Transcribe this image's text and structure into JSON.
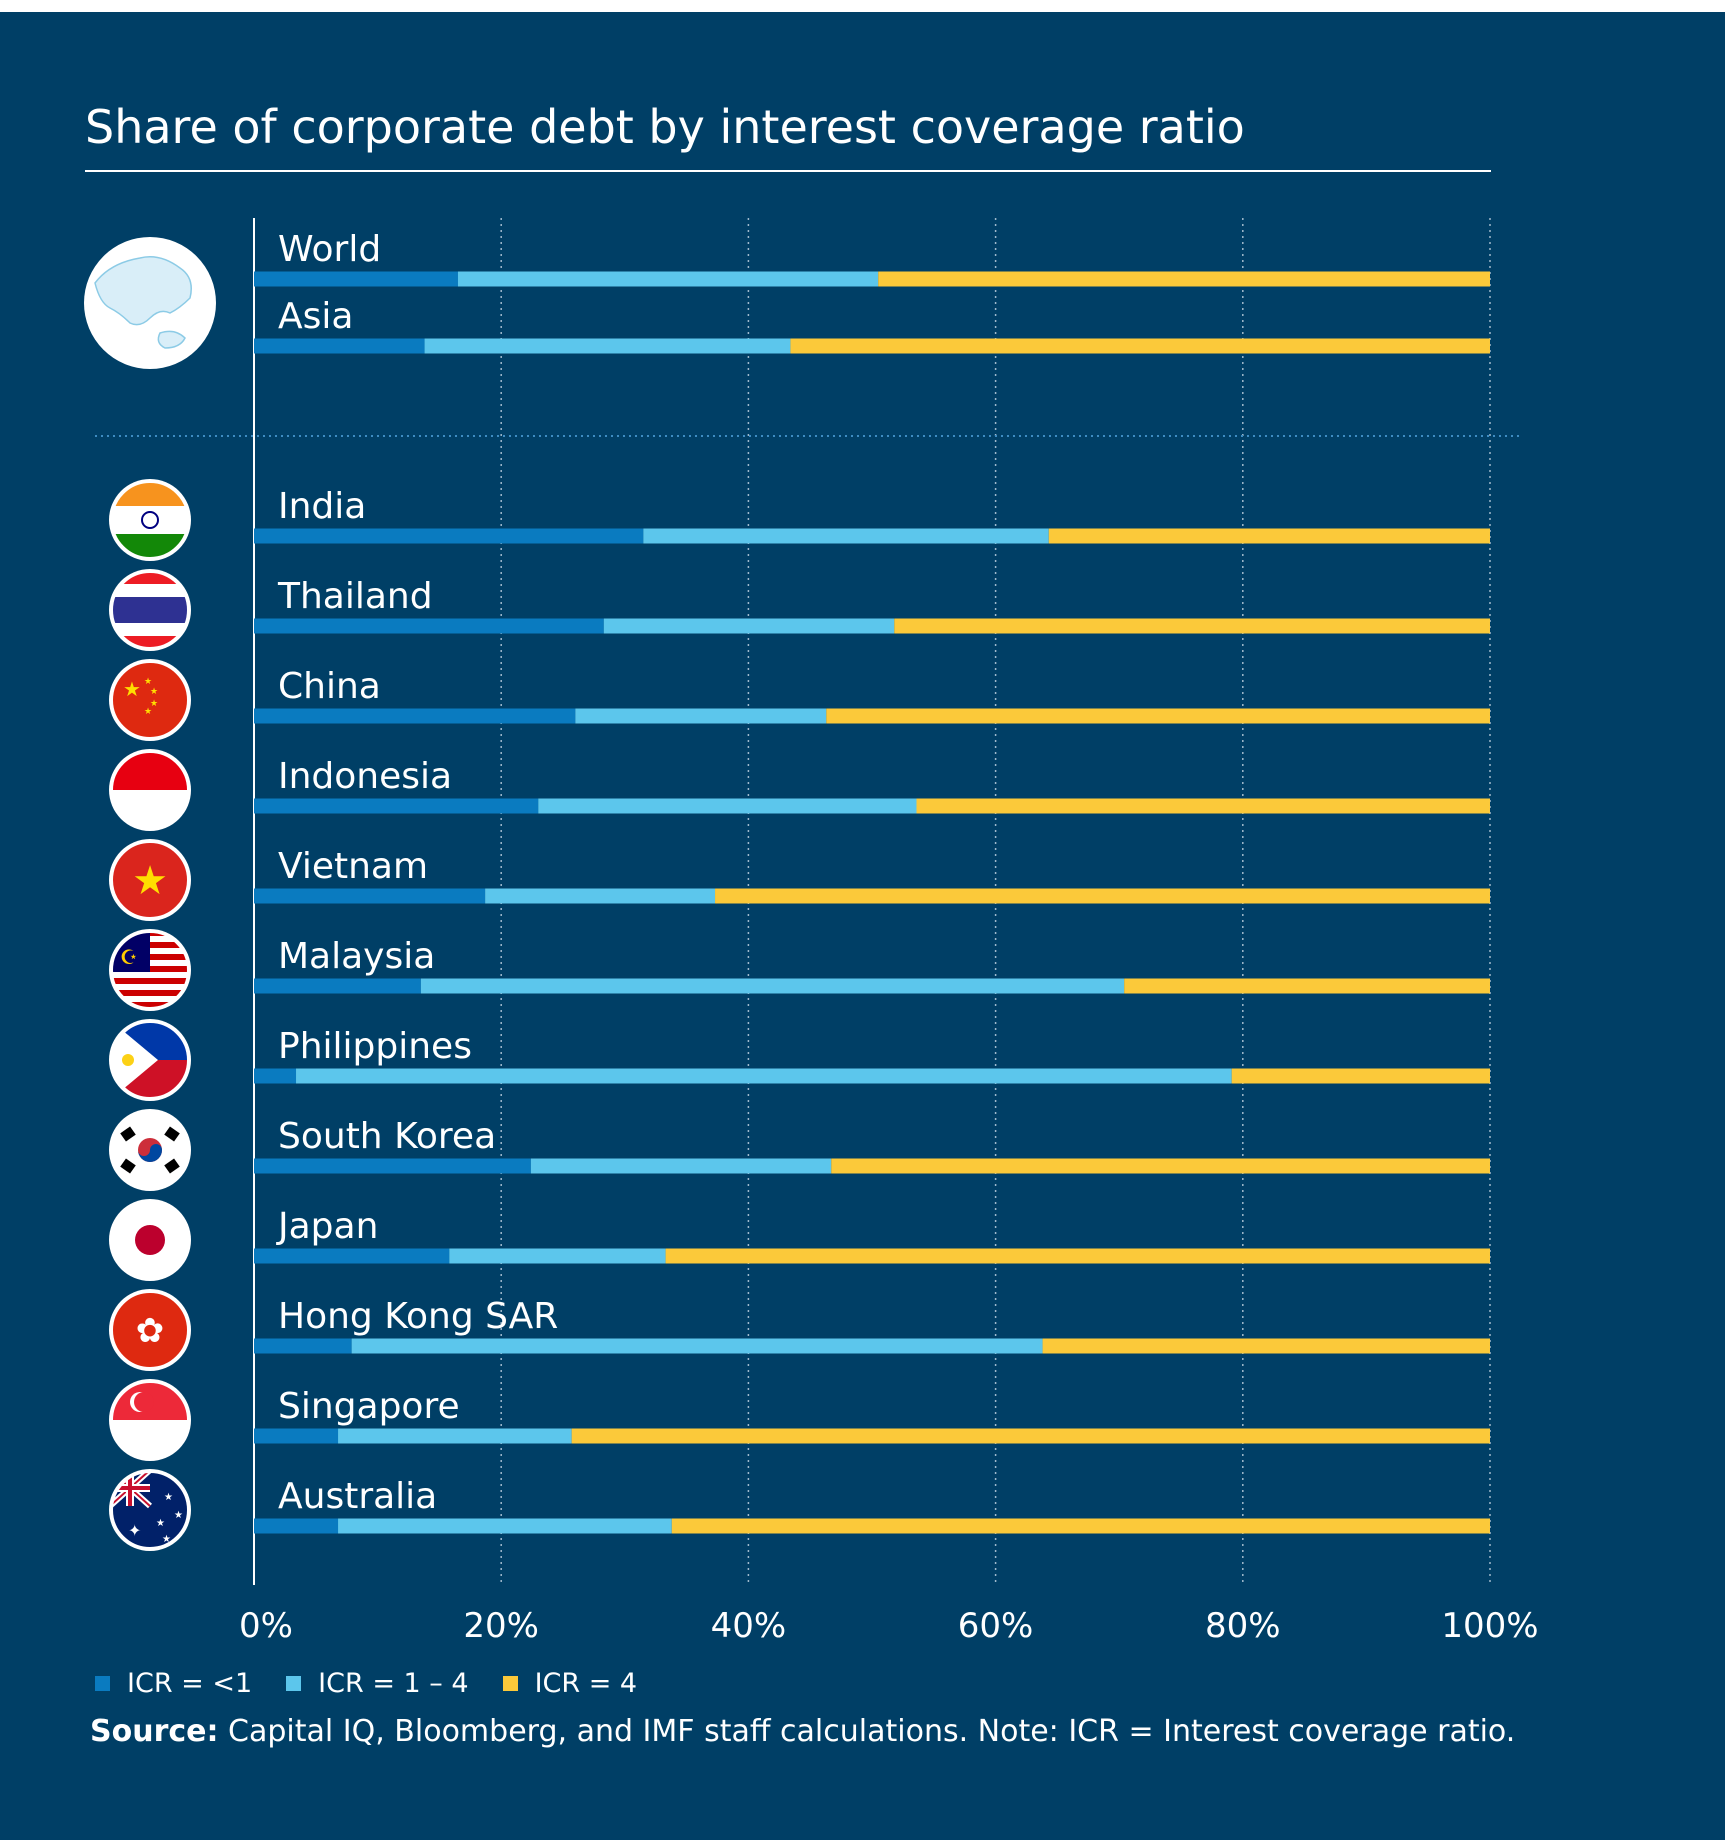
{
  "colors": {
    "background": "#003F66",
    "icr_lt1": "#0A7BC0",
    "icr_1_4": "#5CC6EC",
    "icr_4": "#FBC93A",
    "text": "#FFFFFF"
  },
  "title": "Share of corporate debt by interest coverage ratio",
  "legend": [
    {
      "label": "ICR = <1",
      "color": "#0A7BC0"
    },
    {
      "label": "ICR = 1 – 4",
      "color": "#5CC6EC"
    },
    {
      "label": "ICR = 4",
      "color": "#FBC93A"
    }
  ],
  "source": {
    "bold": "Source:",
    "text": " Capital IQ, Bloomberg, and IMF staff calculations. Note: ICR = Interest coverage ratio."
  },
  "chart_data": {
    "type": "bar",
    "orientation": "horizontal",
    "stacked": true,
    "title": "Share of corporate debt by interest coverage ratio",
    "xlim": [
      0,
      100
    ],
    "x_ticks": [
      "0%",
      "20%",
      "40%",
      "60%",
      "80%",
      "100%"
    ],
    "grid": "vertical dotted",
    "legend_position": "bottom-left",
    "categories": [
      "World",
      "Asia",
      "India",
      "Thailand",
      "China",
      "Indonesia",
      "Vietnam",
      "Malaysia",
      "Philippines",
      "South Korea",
      "Japan",
      "Hong Kong SAR",
      "Singapore",
      "Australia"
    ],
    "icons": [
      "globe-icon",
      "globe-icon",
      "flag-india-icon",
      "flag-thailand-icon",
      "flag-china-icon",
      "flag-indonesia-icon",
      "flag-vietnam-icon",
      "flag-malaysia-icon",
      "flag-philippines-icon",
      "flag-south-korea-icon",
      "flag-japan-icon",
      "flag-hong-kong-icon",
      "flag-singapore-icon",
      "flag-australia-icon"
    ],
    "series": [
      {
        "name": "ICR = <1",
        "color": "#0A7BC0",
        "values": [
          16.5,
          13.8,
          31.5,
          28.3,
          26.0,
          23.0,
          18.7,
          13.5,
          3.4,
          22.4,
          15.8,
          7.9,
          6.8,
          6.8
        ]
      },
      {
        "name": "ICR = 1 – 4",
        "color": "#5CC6EC",
        "values": [
          34.0,
          29.6,
          32.8,
          23.5,
          20.3,
          30.6,
          18.6,
          56.9,
          75.7,
          24.3,
          17.5,
          55.9,
          18.9,
          27.0
        ]
      },
      {
        "name": "ICR = 4",
        "color": "#FBC93A",
        "values": [
          49.5,
          56.6,
          35.7,
          48.2,
          53.7,
          46.4,
          62.7,
          29.6,
          20.9,
          53.3,
          66.7,
          36.2,
          74.3,
          66.2
        ]
      }
    ]
  }
}
